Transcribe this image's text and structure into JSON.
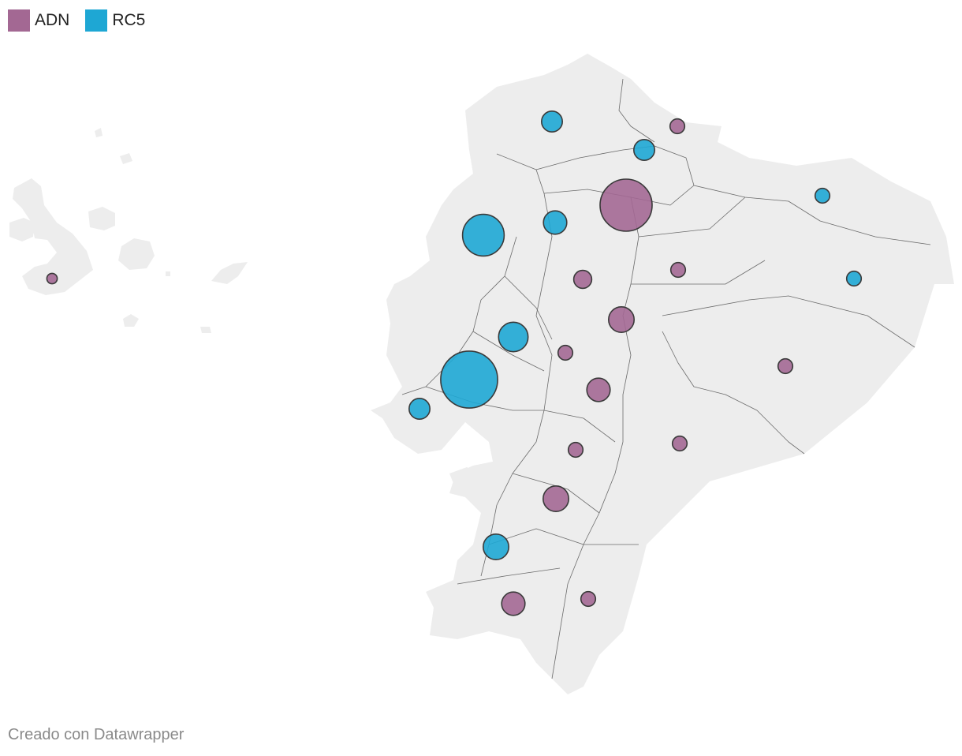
{
  "legend": [
    {
      "label": "ADN",
      "color": "#a36893"
    },
    {
      "label": "RC5",
      "color": "#1ea7d4"
    }
  ],
  "credit": "Creado con Datawrapper",
  "map_style": {
    "land_color": "#ededed",
    "border_color": "#6b6b6b",
    "bubble_stroke": "#3a3a3a"
  },
  "bubbles": [
    {
      "party": "ADN",
      "value": 1
    },
    {
      "party": "RC5",
      "value": 4
    },
    {
      "party": "ADN",
      "value": 2
    },
    {
      "party": "RC5",
      "value": 4
    },
    {
      "party": "RC5",
      "value": 2
    },
    {
      "party": "ADN",
      "value": 25
    },
    {
      "party": "RC5",
      "value": 16
    },
    {
      "party": "RC5",
      "value": 5
    },
    {
      "party": "ADN",
      "value": 3
    },
    {
      "party": "ADN",
      "value": 2
    },
    {
      "party": "RC5",
      "value": 2
    },
    {
      "party": "ADN",
      "value": 6
    },
    {
      "party": "RC5",
      "value": 8
    },
    {
      "party": "ADN",
      "value": 2
    },
    {
      "party": "RC5",
      "value": 30
    },
    {
      "party": "RC5",
      "value": 4
    },
    {
      "party": "ADN",
      "value": 5
    },
    {
      "party": "ADN",
      "value": 2
    },
    {
      "party": "ADN",
      "value": 2
    },
    {
      "party": "ADN",
      "value": 2
    },
    {
      "party": "ADN",
      "value": 6
    },
    {
      "party": "RC5",
      "value": 6
    },
    {
      "party": "ADN",
      "value": 5
    },
    {
      "party": "ADN",
      "value": 2
    }
  ]
}
